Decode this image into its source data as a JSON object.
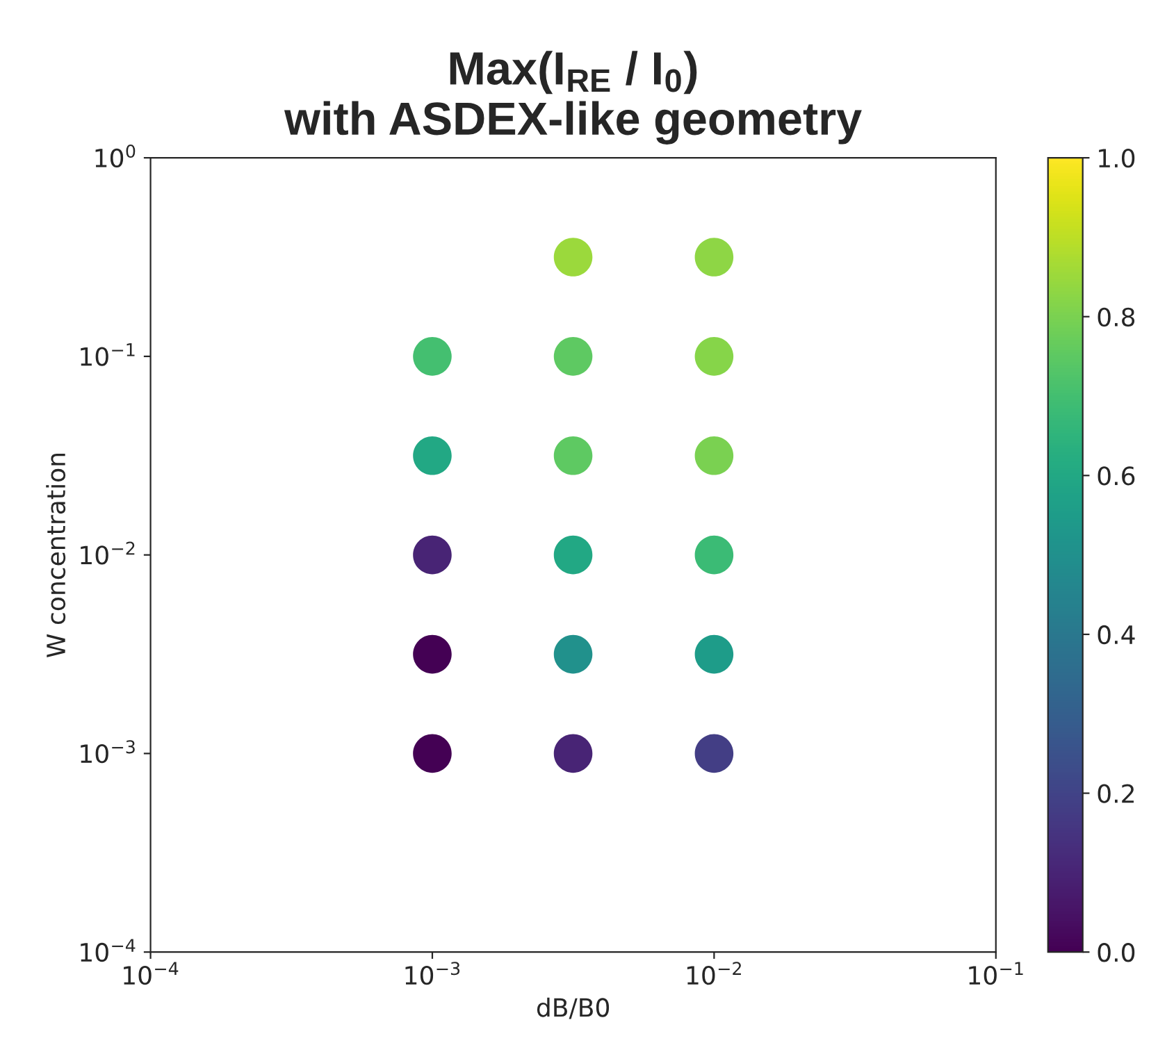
{
  "chart_data": {
    "type": "scatter",
    "title": "Max(I$_{RE}$ / I$_{0}$)\nwith ASDEX-like geometry",
    "xlabel": "dB/B0",
    "ylabel": "W concentration",
    "log": "xy",
    "grid": false,
    "marker": "circle",
    "x": [
      0.001,
      0.001,
      0.001,
      0.001,
      0.001,
      0.00316,
      0.00316,
      0.00316,
      0.00316,
      0.00316,
      0.00316,
      0.01,
      0.01,
      0.01,
      0.01,
      0.01,
      0.01
    ],
    "values": [
      0.001,
      0.00316,
      0.01,
      0.0316,
      0.1,
      0.001,
      0.00316,
      0.01,
      0.0316,
      0.1,
      0.316,
      0.001,
      0.00316,
      0.01,
      0.0316,
      0.1,
      0.316
    ],
    "cvalues": [
      0.0,
      0.0,
      0.1,
      0.6,
      0.7,
      0.1,
      0.5,
      0.6,
      0.75,
      0.75,
      0.85,
      0.18,
      0.55,
      0.68,
      0.8,
      0.82,
      0.83
    ],
    "xlim": [
      0.0001,
      0.1
    ],
    "ylim": [
      0.0001,
      1
    ],
    "xticks": [
      {
        "value": 0.0001,
        "label": "10$^{−4}$"
      },
      {
        "value": 0.001,
        "label": "10$^{−3}$"
      },
      {
        "value": 0.01,
        "label": "10$^{−2}$"
      },
      {
        "value": 0.1,
        "label": "10$^{−1}$"
      }
    ],
    "yticks": [
      {
        "value": 0.0001,
        "label": "10$^{−4}$"
      },
      {
        "value": 0.001,
        "label": "10$^{−3}$"
      },
      {
        "value": 0.01,
        "label": "10$^{−2}$"
      },
      {
        "value": 0.1,
        "label": "10$^{−1}$"
      },
      {
        "value": 1,
        "label": "10$^{0}$"
      }
    ],
    "clim": [
      0,
      1
    ],
    "cticks": [
      {
        "value": 0,
        "label": "0.0"
      },
      0.2,
      0.4,
      0.6,
      0.8,
      {
        "value": 1,
        "label": "1.0"
      }
    ]
  }
}
